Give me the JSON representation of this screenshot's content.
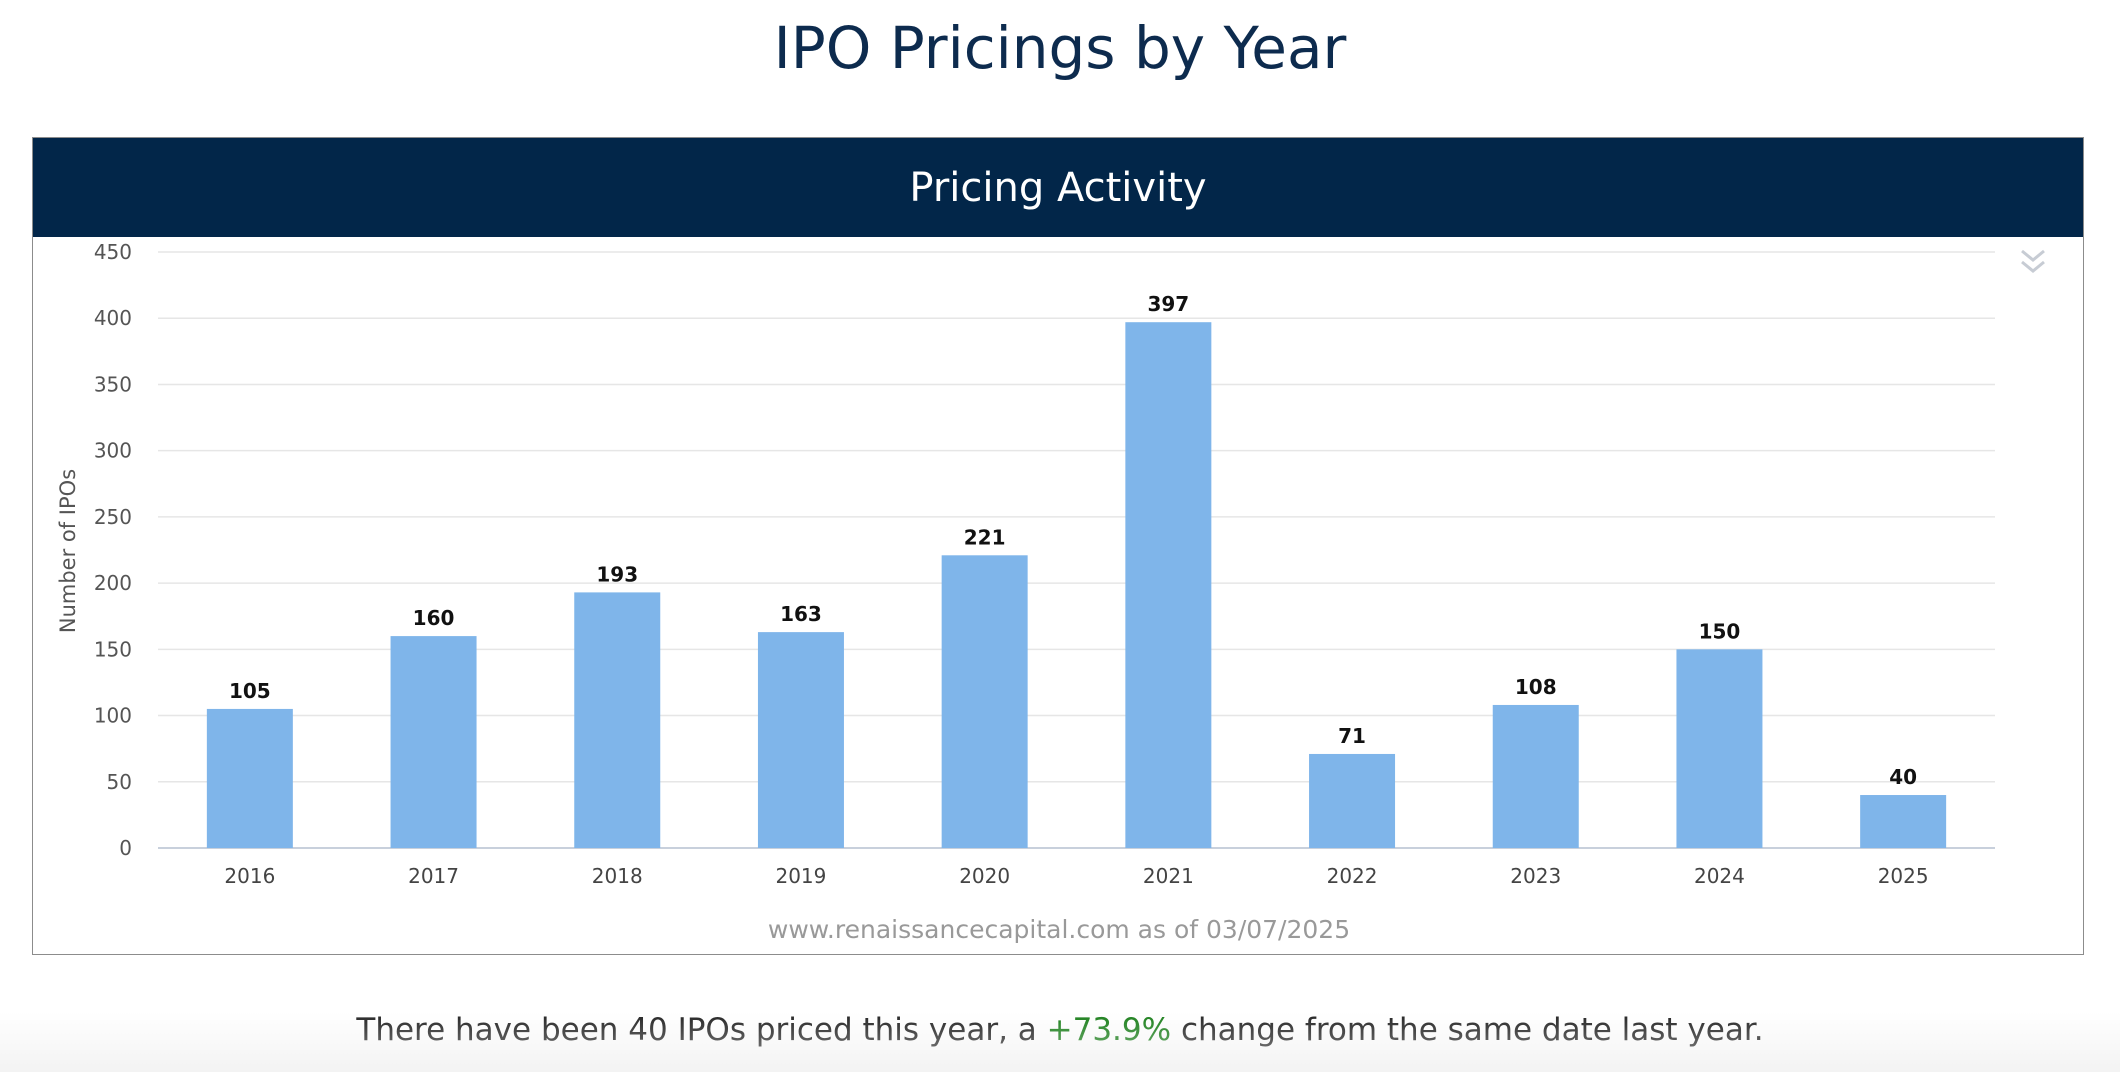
{
  "page": {
    "title": "IPO Pricings by Year"
  },
  "panel": {
    "header": "Pricing Activity",
    "menu_icon": "double-chevron-down-icon"
  },
  "chart_data": {
    "type": "bar",
    "title": "Pricing Activity",
    "categories": [
      "2016",
      "2017",
      "2018",
      "2019",
      "2020",
      "2021",
      "2022",
      "2023",
      "2024",
      "2025"
    ],
    "values": [
      105,
      160,
      193,
      163,
      221,
      397,
      71,
      108,
      150,
      40
    ],
    "ylabel": "Number of IPOs",
    "xlabel": "",
    "ylim": [
      0,
      450
    ],
    "yticks": [
      0,
      50,
      100,
      150,
      200,
      250,
      300,
      350,
      400,
      450
    ],
    "grid": true,
    "bar_color": "#7fb5ea",
    "data_labels": true,
    "credit": "www.renaissancecapital.com as of 03/07/2025"
  },
  "summary": {
    "prefix": "There have been 40 IPOs priced this year, a ",
    "change": "+73.9%",
    "suffix": " change from the same date last year.",
    "change_color": "#1a7f1a"
  }
}
